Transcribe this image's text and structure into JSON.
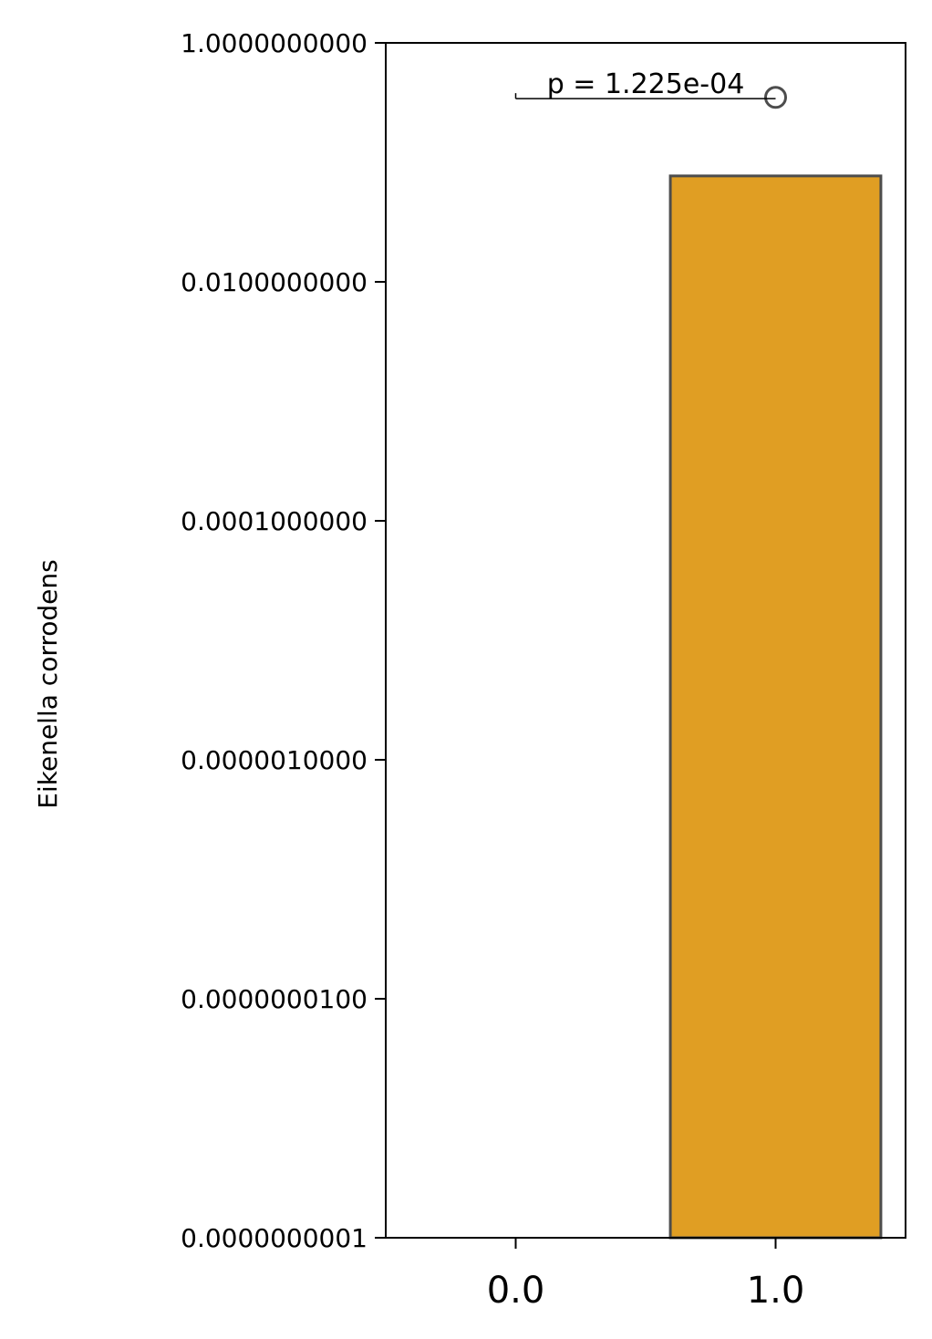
{
  "chart_data": {
    "type": "bar",
    "categories": [
      "0.0",
      "1.0"
    ],
    "values": [
      null,
      0.077
    ],
    "bar_color": "#E09E23",
    "bar_edge_color": "#4D4D4D",
    "outliers": [
      {
        "category": "1.0",
        "value": 0.35
      }
    ],
    "title": "",
    "xlabel": "",
    "ylabel": "Eikenella corrodens",
    "yscale": "log",
    "ylim": [
      1e-10,
      1
    ],
    "yticks": [
      1e-10,
      1e-08,
      1e-06,
      0.0001,
      0.01,
      1
    ],
    "ytick_labels": [
      "0.0000000001",
      "0.0000000100",
      "0.0000010000",
      "0.0001000000",
      "0.0100000000",
      "1.0000000000"
    ],
    "annotation": {
      "text": "p = 1.225e-04",
      "from": "0.0",
      "to": "1.0",
      "value": 0.4
    },
    "grid": false,
    "legend": false
  }
}
